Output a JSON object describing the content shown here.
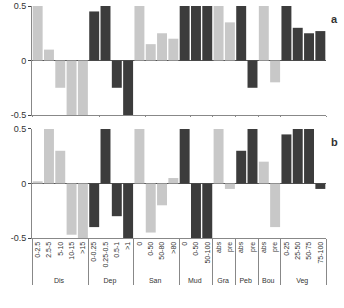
{
  "chart_data": [
    {
      "type": "bar",
      "title": "a",
      "tick_labels": "y",
      "groups": [
        "Dis",
        "Dis",
        "Dis",
        "Dis",
        "Dis",
        "Dep",
        "Dep",
        "Dep",
        "Dep",
        "San",
        "San",
        "San",
        "San",
        "Mud",
        "Mud",
        "Mud",
        "Gra",
        "Gra",
        "Peb",
        "Peb",
        "Bou",
        "Bou",
        "Veg",
        "Veg",
        "Veg",
        "Veg"
      ],
      "categories": [
        "0-2.5",
        "2.5-5",
        "5-10",
        "10-15",
        ">15",
        "0-0.25",
        "0.25-0.5",
        "0.5-1",
        ">1",
        "0",
        "0-50",
        "50-80",
        ">80",
        "0",
        "0-50",
        "50-100",
        "abs",
        "pre",
        "abs",
        "pre",
        "abs",
        "pre",
        "0-25",
        "25-50",
        "50-75",
        "75-100"
      ],
      "values": [
        0.5,
        0.1,
        -0.25,
        -0.5,
        -0.5,
        0.45,
        0.5,
        -0.25,
        -0.5,
        0.5,
        0.15,
        0.25,
        0.2,
        0.5,
        0.5,
        0.5,
        0.5,
        0.35,
        0.5,
        -0.25,
        0.5,
        -0.2,
        0.5,
        0.3,
        0.25,
        0.27
      ],
      "colors": [
        "#c8c8c8",
        "#c8c8c8",
        "#c8c8c8",
        "#c8c8c8",
        "#c8c8c8",
        "#3c3c3c",
        "#3c3c3c",
        "#3c3c3c",
        "#3c3c3c",
        "#c8c8c8",
        "#c8c8c8",
        "#c8c8c8",
        "#c8c8c8",
        "#3c3c3c",
        "#3c3c3c",
        "#3c3c3c",
        "#c8c8c8",
        "#c8c8c8",
        "#3c3c3c",
        "#3c3c3c",
        "#c8c8c8",
        "#c8c8c8",
        "#3c3c3c",
        "#3c3c3c",
        "#3c3c3c",
        "#3c3c3c"
      ],
      "ylim": [
        -0.5,
        0.5
      ],
      "yticks": [
        -0.5,
        0,
        0.5
      ]
    },
    {
      "type": "bar",
      "title": "b",
      "groups": [
        "Dis",
        "Dis",
        "Dis",
        "Dis",
        "Dis",
        "Dep",
        "Dep",
        "Dep",
        "Dep",
        "San",
        "San",
        "San",
        "San",
        "Mud",
        "Mud",
        "Mud",
        "Gra",
        "Gra",
        "Peb",
        "Peb",
        "Bou",
        "Bou",
        "Veg",
        "Veg",
        "Veg",
        "Veg"
      ],
      "categories": [
        "0-2.5",
        "2.5-5",
        "5-10",
        "10-15",
        ">15",
        "0-0.25",
        "0.25-0.5",
        "0.5-1",
        ">1",
        "0",
        "0-50",
        "50-80",
        ">80",
        "0",
        "0-50",
        "50-100",
        "abs",
        "pre",
        "abs",
        "pre",
        "abs",
        "pre",
        "0-25",
        "25-50",
        "50-75",
        "75-100"
      ],
      "values": [
        0.02,
        0.5,
        0.3,
        -0.47,
        -0.5,
        -0.4,
        0.5,
        -0.3,
        -0.5,
        0.5,
        -0.45,
        -0.2,
        0.05,
        0.5,
        -0.5,
        -0.5,
        0.5,
        -0.05,
        0.3,
        0.5,
        0.2,
        -0.4,
        0.45,
        0.5,
        0.5,
        -0.05
      ],
      "colors": [
        "#c8c8c8",
        "#c8c8c8",
        "#c8c8c8",
        "#c8c8c8",
        "#c8c8c8",
        "#3c3c3c",
        "#3c3c3c",
        "#3c3c3c",
        "#3c3c3c",
        "#c8c8c8",
        "#c8c8c8",
        "#c8c8c8",
        "#c8c8c8",
        "#3c3c3c",
        "#3c3c3c",
        "#3c3c3c",
        "#c8c8c8",
        "#c8c8c8",
        "#3c3c3c",
        "#3c3c3c",
        "#c8c8c8",
        "#c8c8c8",
        "#3c3c3c",
        "#3c3c3c",
        "#3c3c3c",
        "#3c3c3c"
      ],
      "ylim": [
        -0.5,
        0.5
      ],
      "yticks": [
        -0.5,
        0,
        0.5
      ]
    }
  ]
}
